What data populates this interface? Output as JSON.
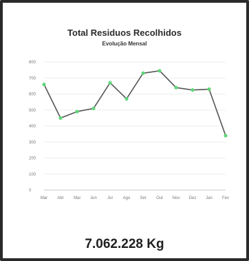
{
  "chart_data": {
    "type": "line",
    "title": "Total Residuos Recolhidos",
    "subtitle": "Evolução Mensal",
    "xlabel": "",
    "ylabel": "",
    "categories": [
      "Mar",
      "Abr",
      "Mai",
      "Jun",
      "Jul",
      "Ago",
      "Set",
      "Out",
      "Nov",
      "Dez",
      "Jan",
      "Fev"
    ],
    "series": [
      {
        "values": [
          660,
          450,
          490,
          510,
          670,
          570,
          730,
          745,
          640,
          625,
          630,
          340
        ],
        "line_color": "#555555",
        "marker_color": "#5fd67a"
      }
    ],
    "yticks": [
      0,
      100,
      200,
      300,
      400,
      500,
      600,
      700,
      800
    ],
    "ylim": [
      0,
      800
    ],
    "grid": "horizontal"
  },
  "total": {
    "value": "7.062.228 Kg"
  }
}
